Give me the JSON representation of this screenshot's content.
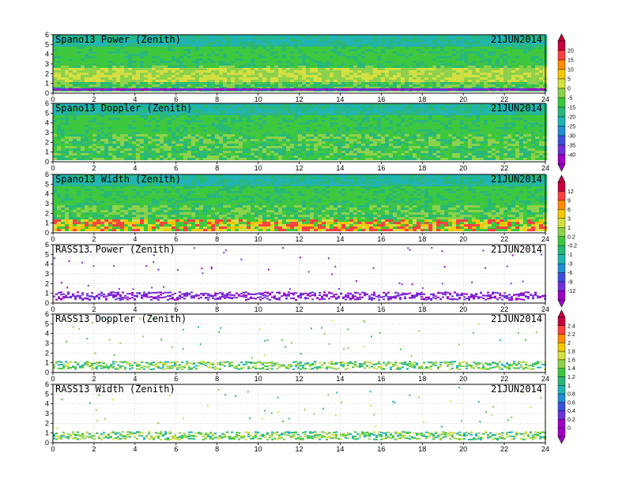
{
  "chart_data": [
    {
      "type": "heatmap",
      "title": "Spano13 Power (Zenith)",
      "date": "21JUN2014",
      "xlim": [
        0,
        24
      ],
      "ylim": [
        0,
        6
      ],
      "xticks": [
        0,
        2,
        4,
        6,
        8,
        10,
        12,
        14,
        16,
        18,
        20,
        22,
        24
      ],
      "yticks": [
        0,
        1,
        2,
        3,
        4,
        5,
        6
      ],
      "grid": true,
      "field": "dense",
      "colorbar": "A"
    },
    {
      "type": "heatmap",
      "title": "Spano13 Doppler (Zenith)",
      "date": "21JUN2014",
      "xlim": [
        0,
        24
      ],
      "ylim": [
        0,
        6
      ],
      "xticks": [
        0,
        2,
        4,
        6,
        8,
        10,
        12,
        14,
        16,
        18,
        20,
        22,
        24
      ],
      "yticks": [
        0,
        1,
        2,
        3,
        4,
        5,
        6
      ],
      "grid": true,
      "field": "dense",
      "colorbar": "A"
    },
    {
      "type": "heatmap",
      "title": "Spano13 Width (Zenith)",
      "date": "21JUN2014",
      "xlim": [
        0,
        24
      ],
      "ylim": [
        0,
        6
      ],
      "xticks": [
        0,
        2,
        4,
        6,
        8,
        10,
        12,
        14,
        16,
        18,
        20,
        22,
        24
      ],
      "yticks": [
        0,
        1,
        2,
        3,
        4,
        5,
        6
      ],
      "grid": true,
      "field": "dense",
      "colorbar": "B"
    },
    {
      "type": "heatmap",
      "title": "RASS13 Power (Zenith)",
      "date": "21JUN2014",
      "xlim": [
        0,
        24
      ],
      "ylim": [
        0,
        6
      ],
      "xticks": [
        0,
        2,
        4,
        6,
        8,
        10,
        12,
        14,
        16,
        18,
        20,
        22,
        24
      ],
      "yticks": [
        0,
        1,
        2,
        3,
        4,
        5,
        6
      ],
      "grid": true,
      "field": "sparse",
      "colorbar": "B"
    },
    {
      "type": "heatmap",
      "title": "RASS13 Doppler (Zenith)",
      "date": "21JUN2014",
      "xlim": [
        0,
        24
      ],
      "ylim": [
        0,
        6
      ],
      "xticks": [
        0,
        2,
        4,
        6,
        8,
        10,
        12,
        14,
        16,
        18,
        20,
        22,
        24
      ],
      "yticks": [
        0,
        1,
        2,
        3,
        4,
        5,
        6
      ],
      "grid": true,
      "field": "sparse",
      "colorbar": "C"
    },
    {
      "type": "heatmap",
      "title": "RASS13 Width (Zenith)",
      "date": "21JUN2014",
      "xlim": [
        0,
        24
      ],
      "ylim": [
        0,
        6
      ],
      "xticks": [
        0,
        2,
        4,
        6,
        8,
        10,
        12,
        14,
        16,
        18,
        20,
        22,
        24
      ],
      "yticks": [
        0,
        1,
        2,
        3,
        4,
        5,
        6
      ],
      "grid": true,
      "field": "sparse",
      "colorbar": "C"
    }
  ],
  "colorbars": {
    "A": {
      "labels": [
        "20",
        "15",
        "10",
        "5",
        "0",
        "-5",
        "-15",
        "-20",
        "-25",
        "-30",
        "-35",
        "-40"
      ],
      "colors": [
        "#c8003c",
        "#ff4040",
        "#ff8c00",
        "#f5c800",
        "#d4e040",
        "#8cd24b",
        "#3cc83c",
        "#28b878",
        "#20b4b4",
        "#1e90d2",
        "#3c50dc",
        "#7030dc",
        "#a000c8"
      ]
    },
    "B": {
      "labels": [
        "12",
        "9",
        "6",
        "3",
        "1",
        "0.2",
        "-0.2",
        "-1",
        "-3",
        "-6",
        "-9",
        "-12"
      ],
      "colors": [
        "#c8003c",
        "#ff4040",
        "#ff8c00",
        "#f5c800",
        "#d4e040",
        "#8cd24b",
        "#3cc83c",
        "#28b878",
        "#20b4b4",
        "#1e90d2",
        "#3c50dc",
        "#7030dc",
        "#a000c8"
      ]
    },
    "C": {
      "labels": [
        "2.4",
        "2.2",
        "2",
        "1.8",
        "1.6",
        "1.4",
        "1.2",
        "1",
        "0.8",
        "0.6",
        "0.4",
        "0.2",
        "0"
      ],
      "colors": [
        "#c8003c",
        "#ff4040",
        "#ff8c00",
        "#f5c800",
        "#d4e040",
        "#8cd24b",
        "#3cc83c",
        "#28b878",
        "#20b4b4",
        "#1e90d2",
        "#3c50dc",
        "#7030dc",
        "#a000c8",
        "#a000c8"
      ]
    }
  }
}
